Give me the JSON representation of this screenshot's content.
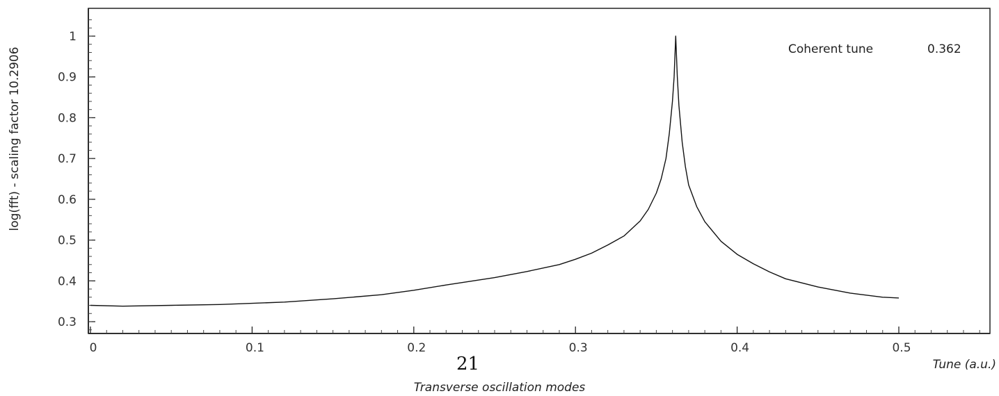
{
  "page_number": "21",
  "caption": "Transverse oscillation modes",
  "chart_data": {
    "type": "line",
    "title": "",
    "xlabel": "Tune (a.u.)",
    "ylabel": "log(fft) - scaling factor 10.2906",
    "xlim": [
      0,
      0.55
    ],
    "ylim": [
      0.27,
      1.05
    ],
    "x_ticks": [
      "0",
      "0.1",
      "0.2",
      "0.3",
      "0.4",
      "0.5"
    ],
    "x_tick_values": [
      0,
      0.1,
      0.2,
      0.3,
      0.4,
      0.5
    ],
    "y_ticks": [
      "0.3",
      "0.4",
      "0.5",
      "0.6",
      "0.7",
      "0.8",
      "0.9",
      "1"
    ],
    "y_tick_values": [
      0.3,
      0.4,
      0.5,
      0.6,
      0.7,
      0.8,
      0.9,
      1.0
    ],
    "grid": false,
    "annotation": {
      "label": "Coherent tune",
      "value": "0.362"
    },
    "series": [
      {
        "x": [
          0,
          0.02,
          0.05,
          0.08,
          0.1,
          0.12,
          0.15,
          0.18,
          0.2,
          0.22,
          0.25,
          0.27,
          0.29,
          0.3,
          0.31,
          0.32,
          0.33,
          0.34,
          0.345,
          0.35,
          0.353,
          0.356,
          0.358,
          0.36,
          0.361,
          0.362,
          0.363,
          0.364,
          0.366,
          0.368,
          0.37,
          0.375,
          0.38,
          0.39,
          0.4,
          0.41,
          0.42,
          0.43,
          0.45,
          0.47,
          0.49,
          0.5
        ],
        "y": [
          0.34,
          0.338,
          0.34,
          0.342,
          0.345,
          0.348,
          0.356,
          0.366,
          0.377,
          0.39,
          0.408,
          0.423,
          0.44,
          0.453,
          0.468,
          0.488,
          0.51,
          0.547,
          0.575,
          0.615,
          0.65,
          0.7,
          0.76,
          0.84,
          0.9,
          1.0,
          0.9,
          0.83,
          0.74,
          0.68,
          0.635,
          0.582,
          0.545,
          0.497,
          0.465,
          0.442,
          0.422,
          0.405,
          0.385,
          0.37,
          0.36,
          0.358
        ]
      }
    ]
  }
}
